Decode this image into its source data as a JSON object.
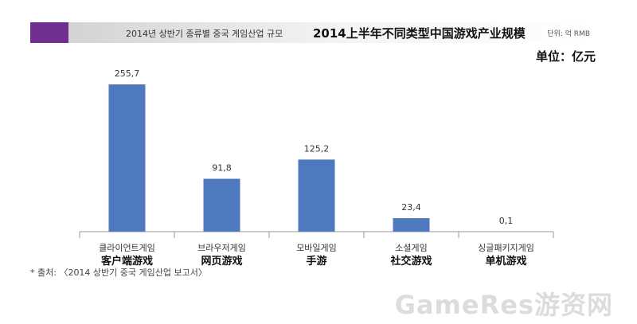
{
  "header": {
    "title_ko": "2014년 상반기 종류별 중국 게임산업 규모",
    "title_zh": "2014上半年不同类型中国游戏产业规模",
    "unit_ko": "단위: 억 RMB",
    "unit_zh": "单位：亿元"
  },
  "footer": {
    "source": "* 출처: 〈2014 상반기 중국 게임산업 보고서〉",
    "watermark": "GameRes游资网"
  },
  "colors": {
    "bar": "#4f79be",
    "axis": "#9a9a9a",
    "accent": "#6f2f8f"
  },
  "chart_data": {
    "type": "bar",
    "title": "2014上半年不同类型中国游戏产业规模",
    "unit": "单位：亿元",
    "categories": [
      {
        "ko": "클라이언트게임",
        "zh": "客户端游戏"
      },
      {
        "ko": "브라우저게임",
        "zh": "网页游戏"
      },
      {
        "ko": "모바일게임",
        "zh": "手游"
      },
      {
        "ko": "소셜게임",
        "zh": "社交游戏"
      },
      {
        "ko": "싱글패키지게임",
        "zh": "单机游戏"
      }
    ],
    "values": [
      255.7,
      91.8,
      125.2,
      23.4,
      0.1
    ],
    "value_labels": [
      "255,7",
      "91,8",
      "125,2",
      "23,4",
      "0,1"
    ],
    "ylim": [
      0,
      255.7
    ],
    "grid": false,
    "legend": "none"
  }
}
